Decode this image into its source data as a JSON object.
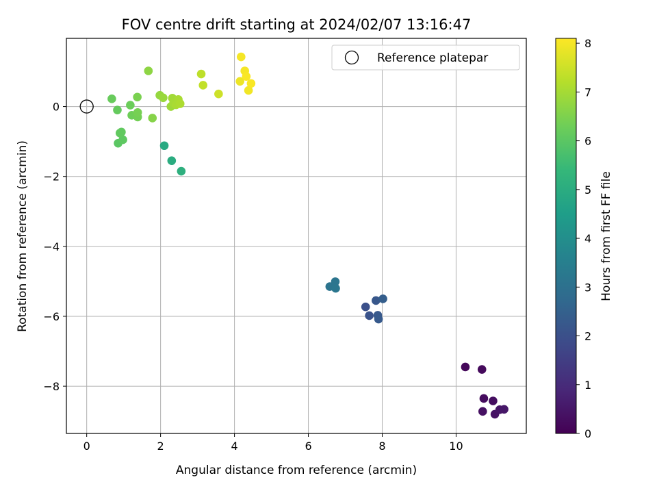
{
  "chart_data": {
    "type": "scatter",
    "title": "FOV centre drift starting at 2024/02/07 13:16:47",
    "xlabel": "Angular distance from reference (arcmin)",
    "ylabel": "Rotation from reference (arcmin)",
    "xlim": [
      -0.55,
      11.9
    ],
    "ylim": [
      -9.35,
      1.95
    ],
    "xticks": [
      0,
      2,
      4,
      6,
      8,
      10
    ],
    "yticks": [
      0,
      -2,
      -4,
      -6,
      -8
    ],
    "xtick_labels": [
      "0",
      "2",
      "4",
      "6",
      "8",
      "10"
    ],
    "ytick_labels": [
      "0",
      "−2",
      "−4",
      "−6",
      "−8"
    ],
    "grid": true,
    "legend": {
      "placement": "top-right",
      "entries": [
        "Reference platepar"
      ]
    },
    "reference_point": {
      "x": 0,
      "y": 0,
      "label": "Reference platepar"
    },
    "colorbar": {
      "label": "Hours from first FF file",
      "range": [
        0,
        8.1
      ],
      "ticks": [
        0,
        1,
        2,
        3,
        4,
        5,
        6,
        7,
        8
      ],
      "tick_labels": [
        "0",
        "1",
        "2",
        "3",
        "4",
        "5",
        "6",
        "7",
        "8"
      ],
      "colormap": "viridis",
      "color_stops": [
        "#440154",
        "#482878",
        "#3e4989",
        "#31688e",
        "#26828e",
        "#1f9e89",
        "#35b779",
        "#6ece58",
        "#b5de2b",
        "#fde725"
      ]
    },
    "points": [
      {
        "x": 10.25,
        "y": -7.45,
        "h": 0.15
      },
      {
        "x": 10.7,
        "y": -7.52,
        "h": 0.2
      },
      {
        "x": 10.75,
        "y": -8.35,
        "h": 0.25
      },
      {
        "x": 11.0,
        "y": -8.42,
        "h": 0.3
      },
      {
        "x": 10.72,
        "y": -8.72,
        "h": 0.35
      },
      {
        "x": 11.05,
        "y": -8.8,
        "h": 0.4
      },
      {
        "x": 11.18,
        "y": -8.67,
        "h": 0.45
      },
      {
        "x": 11.3,
        "y": -8.66,
        "h": 0.5
      },
      {
        "x": 7.55,
        "y": -5.73,
        "h": 2.0
      },
      {
        "x": 7.65,
        "y": -5.98,
        "h": 2.1
      },
      {
        "x": 7.83,
        "y": -5.55,
        "h": 2.2
      },
      {
        "x": 7.88,
        "y": -5.97,
        "h": 2.25
      },
      {
        "x": 7.9,
        "y": -6.08,
        "h": 2.3
      },
      {
        "x": 8.02,
        "y": -5.5,
        "h": 2.4
      },
      {
        "x": 6.58,
        "y": -5.15,
        "h": 3.1
      },
      {
        "x": 6.73,
        "y": -5.01,
        "h": 3.15
      },
      {
        "x": 6.74,
        "y": -5.2,
        "h": 3.2
      },
      {
        "x": 2.1,
        "y": -1.12,
        "h": 4.9
      },
      {
        "x": 2.3,
        "y": -1.55,
        "h": 5.0
      },
      {
        "x": 2.56,
        "y": -1.85,
        "h": 5.1
      },
      {
        "x": 0.85,
        "y": -1.05,
        "h": 6.0
      },
      {
        "x": 0.98,
        "y": -0.95,
        "h": 6.05
      },
      {
        "x": 0.94,
        "y": -0.73,
        "h": 6.1
      },
      {
        "x": 0.9,
        "y": -0.76,
        "h": 6.1
      },
      {
        "x": 0.83,
        "y": -0.1,
        "h": 6.15
      },
      {
        "x": 0.68,
        "y": 0.22,
        "h": 6.2
      },
      {
        "x": 1.18,
        "y": 0.04,
        "h": 6.25
      },
      {
        "x": 1.22,
        "y": -0.25,
        "h": 6.3
      },
      {
        "x": 1.38,
        "y": -0.3,
        "h": 6.35
      },
      {
        "x": 1.38,
        "y": -0.17,
        "h": 6.4
      },
      {
        "x": 1.37,
        "y": 0.27,
        "h": 6.45
      },
      {
        "x": 1.78,
        "y": -0.33,
        "h": 6.6
      },
      {
        "x": 1.67,
        "y": 1.02,
        "h": 6.7
      },
      {
        "x": 1.98,
        "y": 0.32,
        "h": 6.8
      },
      {
        "x": 2.07,
        "y": 0.25,
        "h": 6.85
      },
      {
        "x": 2.28,
        "y": 0.0,
        "h": 6.9
      },
      {
        "x": 2.32,
        "y": 0.24,
        "h": 6.95
      },
      {
        "x": 2.35,
        "y": 0.1,
        "h": 7.0
      },
      {
        "x": 2.42,
        "y": 0.05,
        "h": 7.05
      },
      {
        "x": 2.48,
        "y": 0.2,
        "h": 7.05
      },
      {
        "x": 2.53,
        "y": 0.08,
        "h": 7.1
      },
      {
        "x": 3.1,
        "y": 0.93,
        "h": 7.3
      },
      {
        "x": 3.15,
        "y": 0.61,
        "h": 7.35
      },
      {
        "x": 3.57,
        "y": 0.36,
        "h": 7.5
      },
      {
        "x": 4.15,
        "y": 0.72,
        "h": 7.9
      },
      {
        "x": 4.18,
        "y": 1.42,
        "h": 8.0
      },
      {
        "x": 4.28,
        "y": 1.02,
        "h": 8.0
      },
      {
        "x": 4.32,
        "y": 0.86,
        "h": 8.05
      },
      {
        "x": 4.38,
        "y": 0.46,
        "h": 7.95
      },
      {
        "x": 4.45,
        "y": 0.66,
        "h": 8.05
      }
    ]
  }
}
